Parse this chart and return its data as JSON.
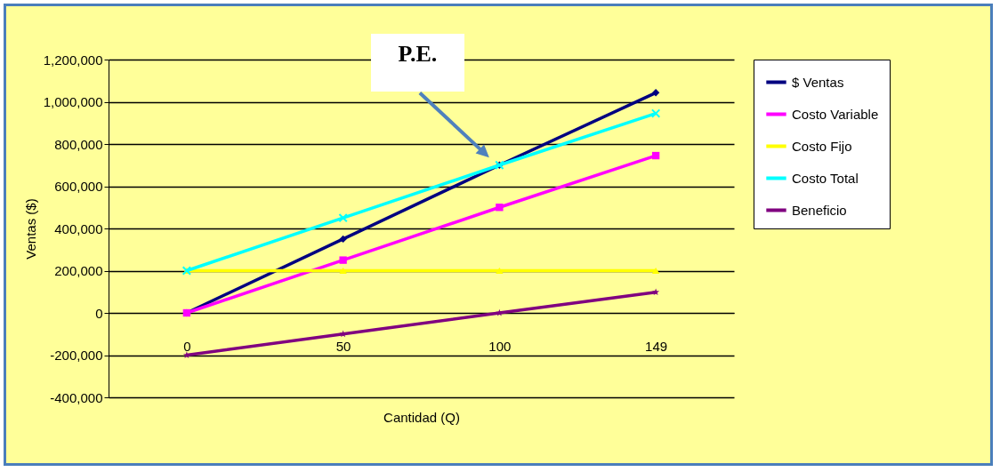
{
  "chart_data": {
    "type": "line",
    "xlabel": "Cantidad (Q)",
    "ylabel": "Ventas ($)",
    "categories": [
      "0",
      "50",
      "100",
      "149"
    ],
    "series": [
      {
        "name": "$ Ventas",
        "color": "#000080",
        "marker": "diamond",
        "values": [
          0,
          350000,
          700000,
          1043000
        ]
      },
      {
        "name": "Costo Variable",
        "color": "#ff00ff",
        "marker": "square",
        "values": [
          0,
          250000,
          500000,
          745000
        ]
      },
      {
        "name": "Costo Fijo",
        "color": "#ffff00",
        "marker": "triangle",
        "values": [
          200000,
          200000,
          200000,
          200000
        ]
      },
      {
        "name": "Costo Total",
        "color": "#00ffff",
        "marker": "cross",
        "values": [
          200000,
          450000,
          700000,
          945000
        ]
      },
      {
        "name": "Beneficio",
        "color": "#800080",
        "marker": "star",
        "values": [
          -200000,
          -100000,
          0,
          98000
        ]
      }
    ],
    "ylim": [
      -400000,
      1200000
    ],
    "yticks": [
      {
        "value": -400000,
        "label": "-400,000"
      },
      {
        "value": -200000,
        "label": "-200,000"
      },
      0,
      {
        "value": 200000,
        "label": "200,000"
      },
      {
        "value": 400000,
        "label": "400,000"
      },
      {
        "value": 600000,
        "label": "600,000"
      },
      {
        "value": 800000,
        "label": "800,000"
      },
      {
        "value": 1000000,
        "label": "1,000,000"
      },
      {
        "value": 1200000,
        "label": "1,200,000"
      }
    ],
    "grid": "y",
    "legend": "right",
    "annotations": [
      "P.E."
    ]
  }
}
